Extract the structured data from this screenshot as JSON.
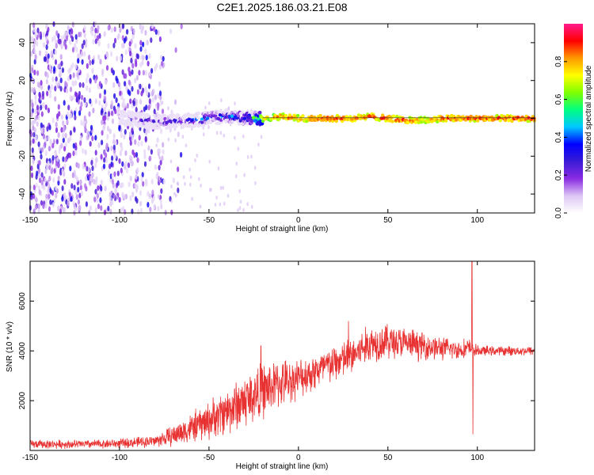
{
  "figure": {
    "title": "C2E1.2025.186.03.21.E08"
  },
  "chart_data": [
    {
      "type": "heatmap",
      "title": "C2E1.2025.186.03.21.E08",
      "xlabel": "Height of straight line (km)",
      "ylabel": "Frequency (Hz)",
      "xlim": [
        -150,
        132
      ],
      "ylim": [
        -50,
        50
      ],
      "x_ticks": [
        "-150",
        "-100",
        "-50",
        "0",
        "50",
        "100"
      ],
      "y_ticks": [
        "-40",
        "-20",
        "0",
        "20",
        "40"
      ],
      "colorbar": {
        "label": "Normalized spectral amplitude",
        "range": [
          0,
          1
        ],
        "ticks": [
          "0.0",
          "0.2",
          "0.4",
          "0.6",
          "0.8"
        ],
        "colormap": [
          "#ffffff",
          "#dcc6f4",
          "#8a2be2",
          "#3a1bd6",
          "#0000ff",
          "#00c8ff",
          "#00ff80",
          "#7fff00",
          "#ffff00",
          "#ff9900",
          "#ff0000",
          "#ff1a8c"
        ]
      },
      "signal_track": {
        "x": [
          -100,
          -80,
          -60,
          -40,
          -30,
          -20,
          -10,
          0,
          10,
          20,
          30,
          40,
          50,
          60,
          70,
          80,
          90,
          100,
          110,
          120,
          132
        ],
        "frequency": [
          0.5,
          -2,
          -1,
          1,
          0,
          0,
          1,
          0,
          0,
          0,
          0,
          1,
          0,
          -1,
          -1,
          0,
          0,
          0,
          0,
          0,
          0
        ],
        "amplitude": [
          0.25,
          0.35,
          0.45,
          0.5,
          0.55,
          0.8,
          0.9,
          0.92,
          0.95,
          0.95,
          0.9,
          0.93,
          0.95,
          0.95,
          0.85,
          0.95,
          0.95,
          0.95,
          0.95,
          0.95,
          0.95
        ]
      },
      "noise_region_x": [
        -150,
        -75
      ]
    },
    {
      "type": "line",
      "xlabel": "Height of straight line (km)",
      "ylabel": "SNR (10 * v/v)",
      "xlim": [
        -150,
        132
      ],
      "ylim": [
        0,
        7600
      ],
      "x_ticks": [
        "-150",
        "-100",
        "-50",
        "0",
        "50",
        "100"
      ],
      "y_ticks": [
        "2000",
        "4000",
        "6000"
      ],
      "color": "#e83232",
      "trend": {
        "x": [
          -150,
          -120,
          -100,
          -80,
          -70,
          -60,
          -50,
          -40,
          -30,
          -20,
          -10,
          0,
          10,
          20,
          30,
          40,
          50,
          60,
          70,
          80,
          90,
          95,
          100,
          110,
          120,
          132
        ],
        "mean": [
          250,
          250,
          280,
          380,
          600,
          900,
          1200,
          1600,
          2000,
          2400,
          2700,
          2900,
          3200,
          3500,
          3800,
          4300,
          4400,
          4300,
          4200,
          4100,
          4050,
          4100,
          4000,
          4000,
          4000,
          4000
        ],
        "spread": [
          200,
          200,
          220,
          280,
          500,
          700,
          900,
          1100,
          1300,
          1300,
          1100,
          900,
          900,
          900,
          900,
          900,
          850,
          750,
          650,
          550,
          450,
          500,
          250,
          220,
          220,
          220
        ]
      },
      "peaks": [
        {
          "x": -21,
          "value": 4200
        },
        {
          "x": 28,
          "value": 5200
        },
        {
          "x": 97,
          "value": 7600
        },
        {
          "x": 97.5,
          "value": 650
        }
      ]
    }
  ]
}
